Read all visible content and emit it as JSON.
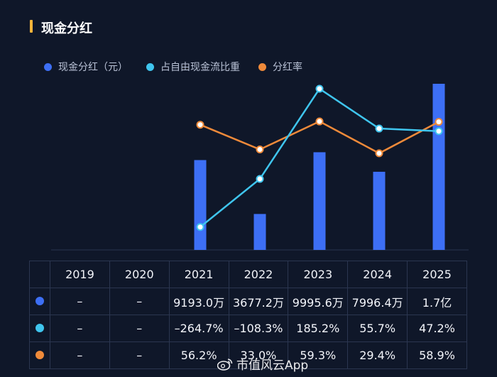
{
  "title": "现金分红",
  "legend": [
    {
      "label": "现金分红（元）",
      "color": "#3d6ff5"
    },
    {
      "label": "占自由现金流比重",
      "color": "#3fc5ee"
    },
    {
      "label": "分红率",
      "color": "#ef8a3a"
    }
  ],
  "chart_data": {
    "type": "bar+line",
    "categories": [
      "2019",
      "2020",
      "2021",
      "2022",
      "2023",
      "2024",
      "2025"
    ],
    "series": [
      {
        "name": "现金分红（元）",
        "type": "bar",
        "color": "#3d6ff5",
        "unit": "万元",
        "values": [
          null,
          null,
          9193.0,
          3677.2,
          9995.6,
          7996.4,
          17000
        ]
      },
      {
        "name": "占自由现金流比重",
        "type": "line",
        "color": "#3fc5ee",
        "unit": "%",
        "values": [
          null,
          null,
          -264.7,
          -108.3,
          185.2,
          55.7,
          47.2
        ]
      },
      {
        "name": "分红率",
        "type": "line",
        "color": "#ef8a3a",
        "unit": "%",
        "values": [
          null,
          null,
          56.2,
          33.0,
          59.3,
          29.4,
          58.9
        ]
      }
    ],
    "bar_ylim": [
      0,
      17000
    ],
    "line_ylim": [
      -300,
      185.2
    ],
    "rate_ylim": [
      -50,
      90
    ]
  },
  "table": {
    "header": [
      "2019",
      "2020",
      "2021",
      "2022",
      "2023",
      "2024",
      "2025"
    ],
    "rows": [
      {
        "color": "#3d6ff5",
        "cells": [
          "–",
          "–",
          "9193.0万",
          "3677.2万",
          "9995.6万",
          "7996.4万",
          "1.7亿"
        ]
      },
      {
        "color": "#3fc5ee",
        "cells": [
          "–",
          "–",
          "–264.7%",
          "–108.3%",
          "185.2%",
          "55.7%",
          "47.2%"
        ]
      },
      {
        "color": "#ef8a3a",
        "cells": [
          "–",
          "–",
          "56.2%",
          "33.0%",
          "59.3%",
          "29.4%",
          "58.9%"
        ]
      }
    ]
  },
  "watermark": "市值风云App"
}
